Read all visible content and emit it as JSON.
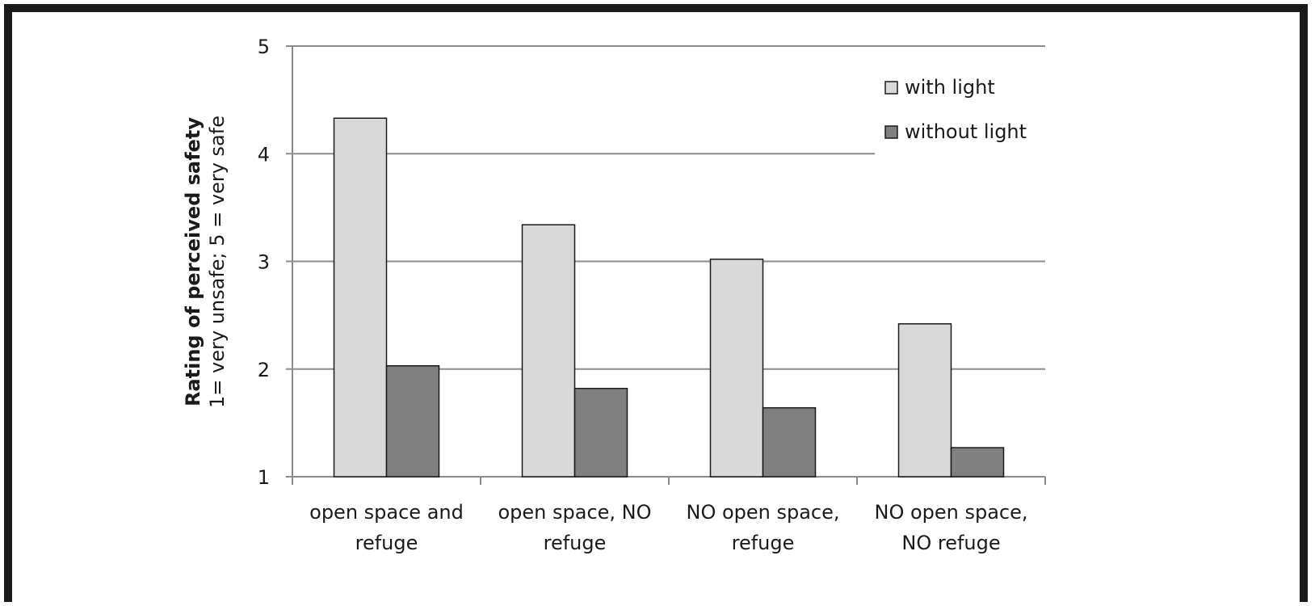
{
  "chart_data": {
    "type": "bar",
    "title": "",
    "ylabel": {
      "line1": "Rating of perceived safety",
      "line2": "1= very unsafe; 5 = very safe"
    },
    "xlabel": "",
    "ylim": [
      1,
      5
    ],
    "yticks": [
      "1",
      "2",
      "3",
      "4",
      "5"
    ],
    "categories": [
      [
        "open space and",
        "refuge"
      ],
      [
        "open space, NO",
        "refuge"
      ],
      [
        "NO open space,",
        "refuge"
      ],
      [
        "NO open space,",
        "NO refuge"
      ]
    ],
    "series": [
      {
        "name": "with light",
        "values": [
          4.33,
          3.34,
          3.02,
          2.42
        ],
        "color": "#d9d9d9"
      },
      {
        "name": "without light",
        "values": [
          2.03,
          1.82,
          1.64,
          1.27
        ],
        "color": "#808080"
      }
    ],
    "grid": true,
    "legend_position": "top-right"
  }
}
